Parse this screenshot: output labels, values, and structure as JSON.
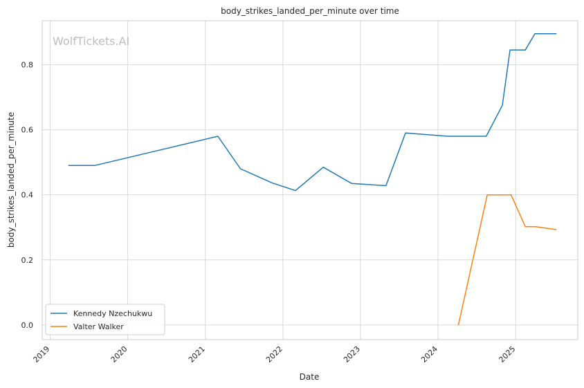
{
  "chart_data": {
    "type": "line",
    "title": "body_strikes_landed_per_minute over time",
    "xlabel": "Date",
    "ylabel": "body_strikes_landed_per_minute",
    "watermark": "WolfTickets.AI",
    "xlim": [
      "2018-11-25",
      "2025-10-20"
    ],
    "ylim": [
      -0.045,
      0.935
    ],
    "x_ticks": [
      "2019",
      "2020",
      "2021",
      "2022",
      "2023",
      "2024",
      "2025"
    ],
    "y_ticks": [
      "0.0",
      "0.2",
      "0.4",
      "0.6",
      "0.8"
    ],
    "grid": true,
    "legend_position": "lower-left",
    "colors": {
      "grid": "#d9d9d9",
      "axes_edge": "#cccccc",
      "watermark": "#bdbdbd"
    },
    "series": [
      {
        "name": "Kennedy Nzechukwu",
        "color": "#1f77b4",
        "points": [
          [
            "2019-03-30",
            0.49
          ],
          [
            "2019-07-30",
            0.49
          ],
          [
            "2021-03-01",
            0.58
          ],
          [
            "2021-06-15",
            0.48
          ],
          [
            "2021-11-10",
            0.437
          ],
          [
            "2022-03-01",
            0.413
          ],
          [
            "2022-07-10",
            0.485
          ],
          [
            "2022-11-20",
            0.435
          ],
          [
            "2023-05-01",
            0.428
          ],
          [
            "2023-08-01",
            0.59
          ],
          [
            "2024-02-15",
            0.58
          ],
          [
            "2024-08-15",
            0.58
          ],
          [
            "2024-10-30",
            0.675
          ],
          [
            "2024-12-05",
            0.845
          ],
          [
            "2025-02-15",
            0.845
          ],
          [
            "2025-04-01",
            0.895
          ],
          [
            "2025-07-10",
            0.895
          ]
        ]
      },
      {
        "name": "Valter Walker",
        "color": "#ff7f0e",
        "points": [
          [
            "2024-04-06",
            0.0
          ],
          [
            "2024-08-20",
            0.4
          ],
          [
            "2024-12-10",
            0.4
          ],
          [
            "2025-02-15",
            0.302
          ],
          [
            "2025-04-05",
            0.302
          ],
          [
            "2025-07-10",
            0.293
          ]
        ]
      }
    ]
  }
}
